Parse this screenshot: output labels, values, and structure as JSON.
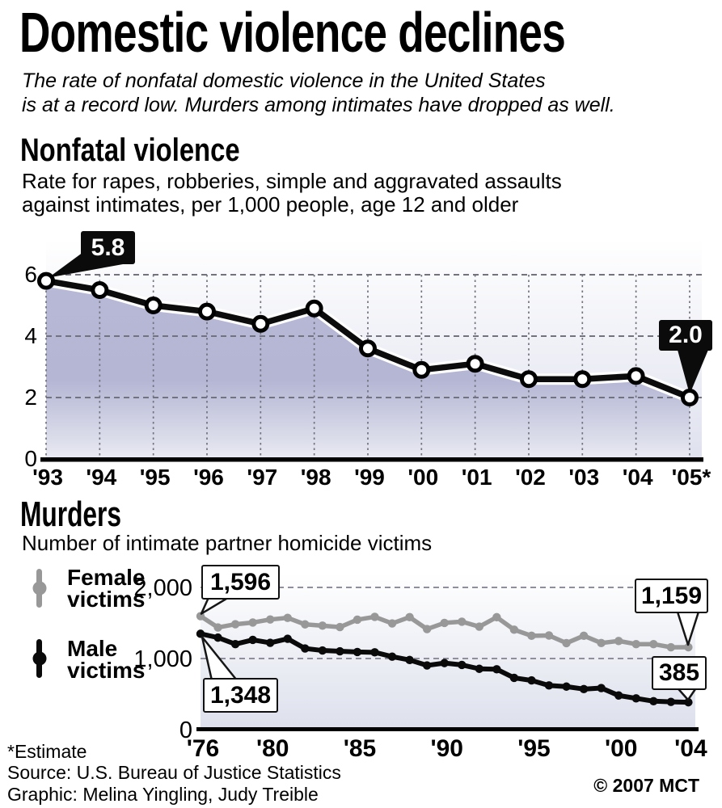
{
  "header": {
    "title": "Domestic violence declines",
    "subtitle_line1": "The rate of nonfatal domestic violence in the United States",
    "subtitle_line2": "is at a record low. Murders among intimates have dropped as well."
  },
  "nonfatal": {
    "heading": "Nonfatal violence",
    "desc_line1": "Rate for rapes, robberies, simple and aggravated assaults",
    "desc_line2": "against intimates, per 1,000 people, age 12 and older"
  },
  "murders": {
    "heading": "Murders",
    "subtitle": "Number of intimate partner homicide victims",
    "legend": [
      {
        "line1": "Female",
        "line2": "victims",
        "color": "#989898"
      },
      {
        "line1": "Male",
        "line2": "victims",
        "color": "#0a0a0a"
      }
    ]
  },
  "footer": {
    "estimate_note": "*Estimate",
    "source": "Source: U.S. Bureau of Justice Statistics",
    "credit": "Graphic: Melina Yingling, Judy Treible",
    "copyright": "© 2007 MCT"
  },
  "colors": {
    "area_fill": "#b6b8d6",
    "female_line": "#989898",
    "male_line": "#0a0a0a",
    "callout_dark": "#0b0b0b"
  },
  "chart_data": [
    {
      "type": "area",
      "title": "Nonfatal violence",
      "subtitle": "Rate for rapes, robberies, simple and aggravated assaults against intimates, per 1,000 people, age 12 and older",
      "categories": [
        "'93",
        "'94",
        "'95",
        "'96",
        "'97",
        "'98",
        "'99",
        "'00",
        "'01",
        "'02",
        "'03",
        "'04",
        "'05*"
      ],
      "values": [
        5.8,
        5.5,
        5.0,
        4.8,
        4.4,
        4.9,
        3.6,
        2.9,
        3.1,
        2.6,
        2.6,
        2.7,
        2.0
      ],
      "yticks": [
        0,
        2,
        4,
        6
      ],
      "ylim": [
        0,
        6
      ],
      "grid": true,
      "legend_position": "none",
      "annotations": [
        {
          "category": "'93",
          "label": "5.8",
          "value": 5.8
        },
        {
          "category": "'05*",
          "label": "2.0",
          "value": 2.0
        }
      ]
    },
    {
      "type": "line",
      "title": "Murders",
      "subtitle": "Number of intimate partner homicide victims",
      "x": [
        1976,
        1977,
        1978,
        1979,
        1980,
        1981,
        1982,
        1983,
        1984,
        1985,
        1986,
        1987,
        1988,
        1989,
        1990,
        1991,
        1992,
        1993,
        1994,
        1995,
        1996,
        1997,
        1998,
        1999,
        2000,
        2001,
        2002,
        2003,
        2004
      ],
      "series": [
        {
          "name": "Female victims",
          "color": "#989898",
          "values": [
            1596,
            1437,
            1482,
            1506,
            1549,
            1572,
            1480,
            1462,
            1442,
            1546,
            1586,
            1494,
            1582,
            1414,
            1501,
            1518,
            1448,
            1581,
            1405,
            1320,
            1324,
            1217,
            1320,
            1218,
            1247,
            1202,
            1202,
            1158,
            1159
          ]
        },
        {
          "name": "Male victims",
          "color": "#0a0a0a",
          "values": [
            1348,
            1294,
            1202,
            1262,
            1221,
            1278,
            1141,
            1113,
            1102,
            1092,
            1087,
            1026,
            979,
            903,
            936,
            910,
            855,
            849,
            728,
            692,
            621,
            605,
            570,
            585,
            480,
            440,
            400,
            390,
            385
          ]
        }
      ],
      "yticks": [
        0,
        1000,
        2000
      ],
      "ytick_labels": [
        "0",
        "1,000",
        "2,000"
      ],
      "xticks": [
        {
          "year": 1976,
          "label": "'76"
        },
        {
          "year": 1980,
          "label": "'80"
        },
        {
          "year": 1985,
          "label": "'85"
        },
        {
          "year": 1990,
          "label": "'90"
        },
        {
          "year": 1995,
          "label": "'95"
        },
        {
          "year": 2000,
          "label": "'00"
        },
        {
          "year": 2004,
          "label": "'04"
        }
      ],
      "ylim": [
        0,
        2200
      ],
      "grid": true,
      "legend_position": "left",
      "annotations": [
        {
          "series": "Female victims",
          "year": 1976,
          "label": "1,596",
          "value": 1596
        },
        {
          "series": "Male victims",
          "year": 1976,
          "label": "1,348",
          "value": 1348
        },
        {
          "series": "Female victims",
          "year": 2004,
          "label": "1,159",
          "value": 1159
        },
        {
          "series": "Male victims",
          "year": 2004,
          "label": "385",
          "value": 385
        }
      ]
    }
  ]
}
